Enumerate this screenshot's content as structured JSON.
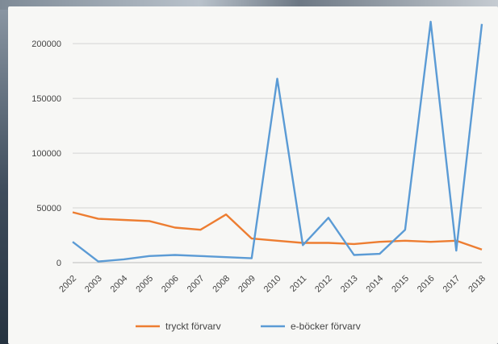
{
  "chart_data": {
    "type": "line",
    "title": "",
    "xlabel": "",
    "ylabel": "",
    "categories": [
      "2002",
      "2003",
      "2004",
      "2005",
      "2006",
      "2007",
      "2008",
      "2009",
      "2010",
      "2011",
      "2012",
      "2013",
      "2014",
      "2015",
      "2016",
      "2017",
      "2018"
    ],
    "ylim": [
      0,
      220000
    ],
    "yticks": [
      0,
      50000,
      100000,
      150000,
      200000
    ],
    "ytick_labels": [
      "0",
      "50000",
      "100000",
      "150000",
      "200000"
    ],
    "grid": true,
    "legend_position": "bottom",
    "series": [
      {
        "name": "tryckt förvarv",
        "color": "#ed7d31",
        "values": [
          46000,
          40000,
          39000,
          38000,
          32000,
          30000,
          44000,
          22000,
          20000,
          18000,
          18000,
          17000,
          19000,
          20000,
          19000,
          20000,
          12000
        ]
      },
      {
        "name": "e-böcker förvarv",
        "color": "#5b9bd5",
        "values": [
          19000,
          1000,
          3000,
          6000,
          7000,
          6000,
          5000,
          4000,
          168000,
          16000,
          41000,
          7000,
          8000,
          30000,
          220000,
          11000,
          218000
        ]
      }
    ]
  }
}
